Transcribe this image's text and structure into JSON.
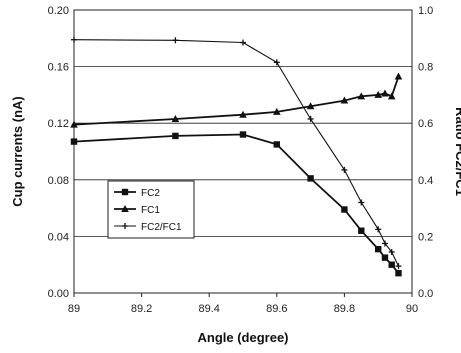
{
  "chart_data": {
    "type": "line",
    "xlabel": "Angle (degree)",
    "ylabel": "Cup currents (nA)",
    "y2label": "Ratio FC2/FC1",
    "xlim": [
      89,
      90
    ],
    "ylim": [
      0,
      0.2
    ],
    "y2lim": [
      0,
      1.0
    ],
    "xticks": [
      "89",
      "89.2",
      "89.4",
      "89.6",
      "89.8",
      "90"
    ],
    "yticks": [
      "0.00",
      "0.04",
      "0.08",
      "0.12",
      "0.16",
      "0.20"
    ],
    "y2ticks": [
      "0.0",
      "0.2",
      "0.4",
      "0.6",
      "0.8",
      "1.0"
    ],
    "grid": true,
    "legend_position": "lower-left",
    "series": [
      {
        "name": "FC2",
        "axis": "left",
        "marker": "square",
        "color": "#111111",
        "x": [
          89.0,
          89.3,
          89.5,
          89.6,
          89.7,
          89.8,
          89.85,
          89.9,
          89.92,
          89.94,
          89.96
        ],
        "y": [
          0.107,
          0.111,
          0.112,
          0.105,
          0.081,
          0.059,
          0.044,
          0.031,
          0.025,
          0.02,
          0.014
        ]
      },
      {
        "name": "FC1",
        "axis": "left",
        "marker": "triangle",
        "color": "#111111",
        "x": [
          89.0,
          89.3,
          89.5,
          89.6,
          89.7,
          89.8,
          89.85,
          89.9,
          89.92,
          89.94,
          89.96
        ],
        "y": [
          0.119,
          0.123,
          0.126,
          0.128,
          0.132,
          0.136,
          0.139,
          0.14,
          0.141,
          0.139,
          0.153
        ]
      },
      {
        "name": "FC2/FC1",
        "axis": "right",
        "marker": "cross",
        "color": "#111111",
        "x": [
          89.0,
          89.3,
          89.5,
          89.6,
          89.7,
          89.8,
          89.85,
          89.9,
          89.92,
          89.94,
          89.96
        ],
        "y": [
          0.895,
          0.893,
          0.885,
          0.815,
          0.615,
          0.435,
          0.32,
          0.225,
          0.175,
          0.145,
          0.095
        ]
      }
    ]
  }
}
